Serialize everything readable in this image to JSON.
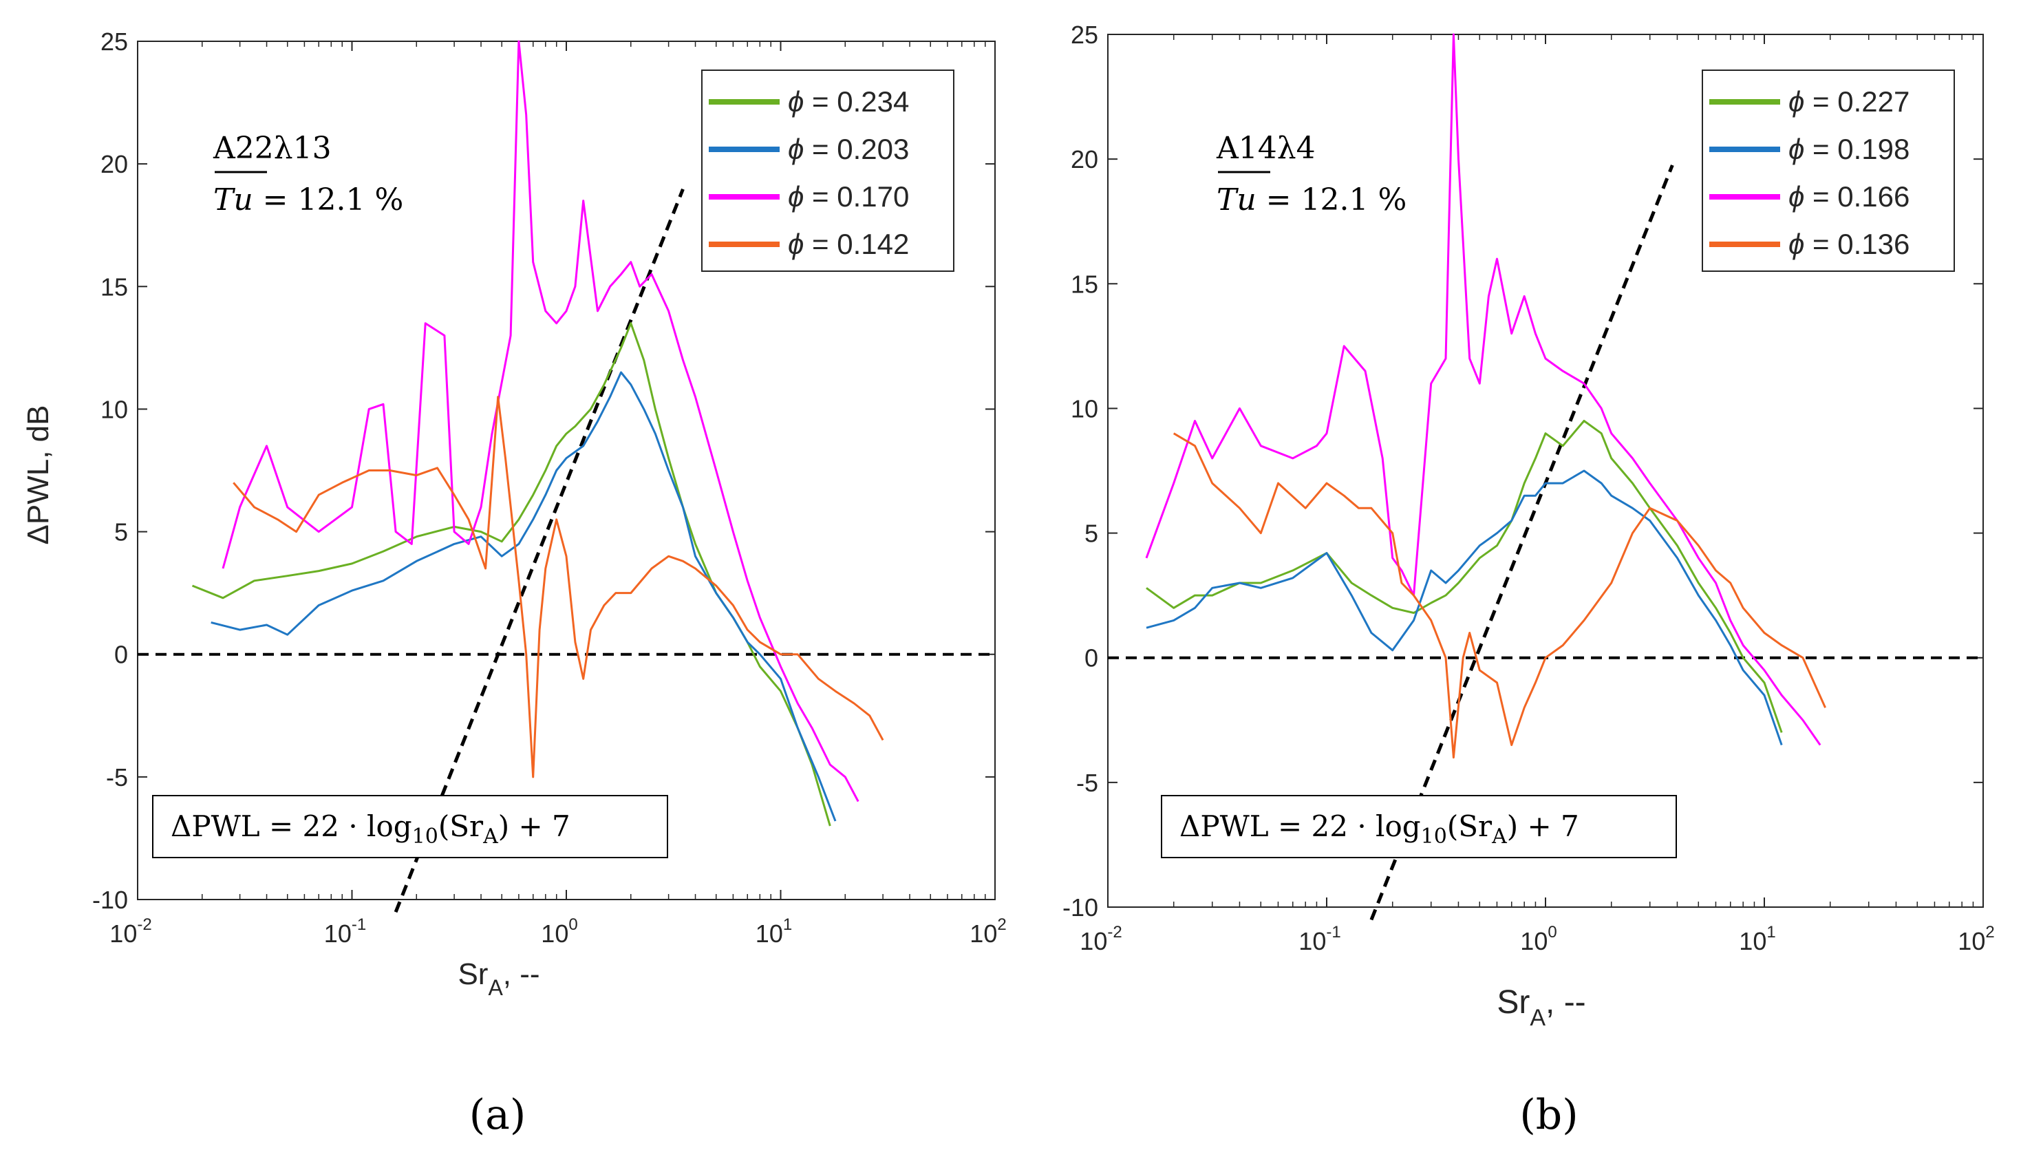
{
  "chart_data": [
    {
      "type": "line",
      "panel_label": "(a)",
      "case_label": "A22λ13",
      "tu_symbol": "Tu",
      "tu_value": " = 12.1 %",
      "xlabel_main": "Sr",
      "xlabel_sub": "A",
      "xlabel_tail": ", --",
      "ylabel": "ΔPWL, dB",
      "xscale": "log",
      "xlim": [
        0.01,
        100
      ],
      "ylim": [
        -10,
        25
      ],
      "xticks": [
        0.01,
        0.1,
        1,
        10,
        100
      ],
      "xtick_base": "10",
      "xtick_exponents": [
        "-2",
        "-1",
        "0",
        "1",
        "2"
      ],
      "yticks": [
        -10,
        -5,
        0,
        5,
        10,
        15,
        20,
        25
      ],
      "ytick_labels": [
        "-10",
        "-5",
        "0",
        "5",
        "10",
        "15",
        "20",
        "25"
      ],
      "legend_location": "top-right",
      "legend_symbol": "ϕ",
      "series": [
        {
          "name": "ϕ = 0.234",
          "phi": "0.234",
          "color": "#6ab023",
          "x": [
            0.018,
            0.025,
            0.035,
            0.05,
            0.07,
            0.1,
            0.14,
            0.2,
            0.3,
            0.4,
            0.5,
            0.6,
            0.7,
            0.8,
            0.9,
            1.0,
            1.1,
            1.3,
            1.5,
            1.8,
            2.0,
            2.3,
            2.6,
            3.0,
            3.5,
            4.0,
            5.0,
            6.0,
            7.0,
            8.0,
            10.0,
            12.0,
            14.0,
            17.0
          ],
          "y": [
            2.8,
            2.3,
            3.0,
            3.2,
            3.4,
            3.7,
            4.2,
            4.8,
            5.2,
            5.0,
            4.6,
            5.5,
            6.5,
            7.5,
            8.5,
            9.0,
            9.3,
            10.0,
            11.0,
            12.5,
            13.5,
            12.0,
            10.0,
            8.0,
            6.0,
            4.5,
            2.5,
            1.5,
            0.5,
            -0.5,
            -1.5,
            -3.0,
            -4.5,
            -7.0
          ]
        },
        {
          "name": "ϕ = 0.203",
          "phi": "0.203",
          "color": "#1f77c4",
          "x": [
            0.022,
            0.03,
            0.04,
            0.05,
            0.07,
            0.1,
            0.14,
            0.2,
            0.3,
            0.4,
            0.5,
            0.6,
            0.7,
            0.8,
            0.9,
            1.0,
            1.2,
            1.4,
            1.6,
            1.8,
            2.0,
            2.3,
            2.6,
            3.0,
            3.5,
            4.0,
            5.0,
            6.0,
            7.0,
            8.0,
            10.0,
            12.0,
            15.0,
            18.0
          ],
          "y": [
            1.3,
            1.0,
            1.2,
            0.8,
            2.0,
            2.6,
            3.0,
            3.8,
            4.5,
            4.8,
            4.0,
            4.5,
            5.5,
            6.5,
            7.5,
            8.0,
            8.5,
            9.5,
            10.5,
            11.5,
            11.0,
            10.0,
            9.0,
            7.5,
            6.0,
            4.0,
            2.5,
            1.5,
            0.5,
            0.0,
            -1.0,
            -3.0,
            -5.0,
            -6.8
          ]
        },
        {
          "name": "ϕ = 0.170",
          "phi": "0.170",
          "color": "#ff00ff",
          "x": [
            0.025,
            0.03,
            0.04,
            0.05,
            0.07,
            0.1,
            0.12,
            0.14,
            0.16,
            0.19,
            0.22,
            0.27,
            0.3,
            0.35,
            0.4,
            0.45,
            0.55,
            0.6,
            0.65,
            0.7,
            0.8,
            0.9,
            1.0,
            1.1,
            1.2,
            1.4,
            1.6,
            1.8,
            2.0,
            2.2,
            2.5,
            3.0,
            3.5,
            4.0,
            5.0,
            6.0,
            7.0,
            8.0,
            10.0,
            12.0,
            14.0,
            17.0,
            20.0,
            23.0
          ],
          "y": [
            3.5,
            6.0,
            8.5,
            6.0,
            5.0,
            6.0,
            10.0,
            10.2,
            5.0,
            4.5,
            13.5,
            13.0,
            5.0,
            4.5,
            6.0,
            9.0,
            13.0,
            25.0,
            22.0,
            16.0,
            14.0,
            13.5,
            14.0,
            15.0,
            18.5,
            14.0,
            15.0,
            15.5,
            16.0,
            15.0,
            15.5,
            14.0,
            12.0,
            10.5,
            7.5,
            5.0,
            3.0,
            1.5,
            -0.5,
            -2.0,
            -3.0,
            -4.5,
            -5.0,
            -6.0
          ]
        },
        {
          "name": "ϕ = 0.142",
          "phi": "0.142",
          "color": "#f26522",
          "x": [
            0.028,
            0.035,
            0.045,
            0.055,
            0.07,
            0.09,
            0.12,
            0.15,
            0.2,
            0.25,
            0.3,
            0.35,
            0.42,
            0.48,
            0.52,
            0.6,
            0.65,
            0.7,
            0.75,
            0.8,
            0.9,
            1.0,
            1.1,
            1.2,
            1.3,
            1.5,
            1.7,
            2.0,
            2.5,
            3.0,
            3.5,
            4.0,
            5.0,
            6.0,
            7.0,
            8.0,
            10.0,
            12.0,
            15.0,
            18.0,
            22.0,
            26.0,
            30.0
          ],
          "y": [
            7.0,
            6.0,
            5.5,
            5.0,
            6.5,
            7.0,
            7.5,
            7.5,
            7.3,
            7.6,
            6.5,
            5.5,
            3.5,
            10.5,
            8.0,
            3.0,
            0.0,
            -5.0,
            1.0,
            3.5,
            5.5,
            4.0,
            0.5,
            -1.0,
            1.0,
            2.0,
            2.5,
            2.5,
            3.5,
            4.0,
            3.8,
            3.5,
            2.8,
            2.0,
            1.0,
            0.5,
            0.0,
            0.0,
            -1.0,
            -1.5,
            -2.0,
            -2.5,
            -3.5
          ]
        }
      ],
      "reference_lines": [
        {
          "name": "zero line",
          "type": "horizontal",
          "y": 0
        },
        {
          "name": "fit line",
          "type": "fit",
          "slope": 22,
          "intercept": 7,
          "x_range": [
            0.16,
            3.5
          ]
        }
      ],
      "annotation": {
        "lhs": "ΔPWL = 22 · log",
        "log_sub": "10",
        "mid": "(Sr",
        "sr_sub": "A",
        "rhs": ") + 7"
      }
    },
    {
      "type": "line",
      "panel_label": "(b)",
      "case_label": "A14λ4",
      "tu_symbol": "Tu",
      "tu_value": " = 12.1 %",
      "xlabel_main": "Sr",
      "xlabel_sub": "A",
      "xlabel_tail": ", --",
      "ylabel": "",
      "xscale": "log",
      "xlim": [
        0.01,
        100
      ],
      "ylim": [
        -10,
        25
      ],
      "xticks": [
        0.01,
        0.1,
        1,
        10,
        100
      ],
      "xtick_base": "10",
      "xtick_exponents": [
        "-2",
        "-1",
        "0",
        "1",
        "2"
      ],
      "yticks": [
        -10,
        -5,
        0,
        5,
        10,
        15,
        20,
        25
      ],
      "ytick_labels": [
        "-10",
        "-5",
        "0",
        "5",
        "10",
        "15",
        "20",
        "25"
      ],
      "legend_location": "top-right",
      "legend_symbol": "ϕ",
      "series": [
        {
          "name": "ϕ = 0.227",
          "phi": "0.227",
          "color": "#6ab023",
          "x": [
            0.015,
            0.02,
            0.025,
            0.03,
            0.04,
            0.05,
            0.07,
            0.1,
            0.13,
            0.16,
            0.2,
            0.25,
            0.3,
            0.35,
            0.4,
            0.5,
            0.6,
            0.7,
            0.8,
            0.9,
            1.0,
            1.2,
            1.5,
            1.8,
            2.0,
            2.5,
            3.0,
            4.0,
            5.0,
            6.0,
            7.0,
            8.0,
            10.0,
            12.0
          ],
          "y": [
            2.8,
            2.0,
            2.5,
            2.5,
            3.0,
            3.0,
            3.5,
            4.2,
            3.0,
            2.5,
            2.0,
            1.8,
            2.2,
            2.5,
            3.0,
            4.0,
            4.5,
            5.5,
            7.0,
            8.0,
            9.0,
            8.5,
            9.5,
            9.0,
            8.0,
            7.0,
            6.0,
            4.5,
            3.0,
            2.0,
            1.0,
            0.0,
            -1.0,
            -3.0
          ]
        },
        {
          "name": "ϕ = 0.198",
          "phi": "0.198",
          "color": "#1f77c4",
          "x": [
            0.015,
            0.02,
            0.025,
            0.03,
            0.04,
            0.05,
            0.07,
            0.1,
            0.13,
            0.16,
            0.2,
            0.25,
            0.3,
            0.35,
            0.4,
            0.5,
            0.6,
            0.7,
            0.8,
            0.9,
            1.0,
            1.2,
            1.5,
            1.8,
            2.0,
            2.5,
            3.0,
            4.0,
            5.0,
            6.0,
            7.0,
            8.0,
            10.0,
            12.0
          ],
          "y": [
            1.2,
            1.5,
            2.0,
            2.8,
            3.0,
            2.8,
            3.2,
            4.2,
            2.5,
            1.0,
            0.3,
            1.5,
            3.5,
            3.0,
            3.5,
            4.5,
            5.0,
            5.5,
            6.5,
            6.5,
            7.0,
            7.0,
            7.5,
            7.0,
            6.5,
            6.0,
            5.5,
            4.0,
            2.5,
            1.5,
            0.5,
            -0.5,
            -1.5,
            -3.5
          ]
        },
        {
          "name": "ϕ = 0.166",
          "phi": "0.166",
          "color": "#ff00ff",
          "x": [
            0.015,
            0.02,
            0.025,
            0.03,
            0.04,
            0.05,
            0.07,
            0.09,
            0.1,
            0.12,
            0.15,
            0.18,
            0.2,
            0.22,
            0.25,
            0.3,
            0.35,
            0.38,
            0.4,
            0.45,
            0.5,
            0.55,
            0.6,
            0.7,
            0.8,
            0.9,
            1.0,
            1.2,
            1.5,
            1.8,
            2.0,
            2.5,
            3.0,
            4.0,
            5.0,
            6.0,
            7.0,
            8.0,
            10.0,
            12.0,
            15.0,
            18.0
          ],
          "y": [
            4.0,
            7.0,
            9.5,
            8.0,
            10.0,
            8.5,
            8.0,
            8.5,
            9.0,
            12.5,
            11.5,
            8.0,
            4.0,
            3.5,
            2.5,
            11.0,
            12.0,
            25.0,
            20.0,
            12.0,
            11.0,
            14.5,
            16.0,
            13.0,
            14.5,
            13.0,
            12.0,
            11.5,
            11.0,
            10.0,
            9.0,
            8.0,
            7.0,
            5.5,
            4.0,
            3.0,
            1.5,
            0.5,
            -0.5,
            -1.5,
            -2.5,
            -3.5
          ]
        },
        {
          "name": "ϕ = 0.136",
          "phi": "0.136",
          "color": "#f26522",
          "x": [
            0.02,
            0.025,
            0.03,
            0.04,
            0.05,
            0.06,
            0.08,
            0.1,
            0.12,
            0.14,
            0.16,
            0.2,
            0.22,
            0.25,
            0.3,
            0.35,
            0.38,
            0.42,
            0.45,
            0.5,
            0.6,
            0.7,
            0.8,
            0.9,
            1.0,
            1.2,
            1.5,
            2.0,
            2.5,
            3.0,
            4.0,
            5.0,
            6.0,
            7.0,
            8.0,
            10.0,
            12.0,
            15.0,
            19.0
          ],
          "y": [
            9.0,
            8.5,
            7.0,
            6.0,
            5.0,
            7.0,
            6.0,
            7.0,
            6.5,
            6.0,
            6.0,
            5.0,
            3.0,
            2.5,
            1.5,
            0.0,
            -4.0,
            0.0,
            1.0,
            -0.5,
            -1.0,
            -3.5,
            -2.0,
            -1.0,
            0.0,
            0.5,
            1.5,
            3.0,
            5.0,
            6.0,
            5.5,
            4.5,
            3.5,
            3.0,
            2.0,
            1.0,
            0.5,
            0.0,
            -2.0
          ]
        }
      ],
      "reference_lines": [
        {
          "name": "zero line",
          "type": "horizontal",
          "y": 0
        },
        {
          "name": "fit line",
          "type": "fit",
          "slope": 22,
          "intercept": 7,
          "x_range": [
            0.16,
            3.8
          ]
        }
      ],
      "annotation": {
        "lhs": "ΔPWL = 22 · log",
        "log_sub": "10",
        "mid": "(Sr",
        "sr_sub": "A",
        "rhs": ") + 7"
      }
    }
  ]
}
